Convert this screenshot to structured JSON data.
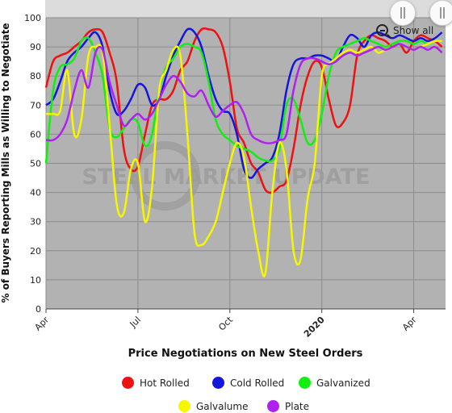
{
  "chart_data": {
    "type": "line",
    "title": "",
    "xlabel": "Price Negotiations on New Steel Orders",
    "ylabel": "% of Buyers Reporting Mills as Willing to Negotiate",
    "ylim": [
      0,
      100
    ],
    "yticks": [
      0,
      10,
      20,
      30,
      40,
      50,
      60,
      70,
      80,
      90,
      100
    ],
    "xticks": [
      {
        "label": "Apr",
        "x": 0,
        "bold": false
      },
      {
        "label": "Jul",
        "x": 13,
        "bold": false
      },
      {
        "label": "Oct",
        "x": 26,
        "bold": false
      },
      {
        "label": "2020",
        "x": 39,
        "bold": true
      },
      {
        "label": "Apr",
        "x": 52,
        "bold": false
      }
    ],
    "xlim": [
      0,
      56.5
    ],
    "grid": true,
    "legend_position": "bottom",
    "watermark": "STEEL MARKET UPDATE",
    "series": [
      {
        "name": "Hot Rolled",
        "color": "#ee1111",
        "x": [
          0,
          1,
          2,
          3,
          4,
          5,
          6,
          7,
          8,
          9,
          10,
          11,
          12,
          13,
          14,
          15,
          16,
          17,
          18,
          19,
          20,
          21,
          22,
          23,
          24,
          25,
          26,
          27,
          28,
          29,
          30,
          31,
          32,
          33,
          34,
          35,
          36,
          37,
          38,
          39,
          40,
          41,
          42,
          43,
          44,
          45,
          46,
          47,
          48,
          49,
          50,
          51,
          52,
          53,
          54,
          55,
          56
        ],
        "values": [
          76,
          85,
          87,
          88,
          90,
          92,
          95,
          96,
          95,
          88,
          78,
          55,
          48,
          49,
          60,
          70,
          72,
          72,
          75,
          82,
          85,
          92,
          96,
          96,
          95,
          90,
          78,
          62,
          57,
          50,
          47,
          41,
          40,
          42,
          44,
          55,
          70,
          80,
          85,
          83,
          72,
          63,
          64,
          70,
          87,
          92,
          94,
          93,
          92,
          90,
          91,
          88,
          92,
          94,
          93,
          92,
          90
        ]
      },
      {
        "name": "Cold Rolled",
        "color": "#1515e0",
        "x": [
          0,
          1,
          2,
          3,
          4,
          5,
          6,
          7,
          8,
          9,
          10,
          11,
          12,
          13,
          14,
          15,
          16,
          17,
          18,
          19,
          20,
          21,
          22,
          23,
          24,
          25,
          26,
          27,
          28,
          29,
          30,
          31,
          32,
          33,
          34,
          35,
          36,
          37,
          38,
          39,
          40,
          41,
          42,
          43,
          44,
          45,
          46,
          47,
          48,
          49,
          50,
          51,
          52,
          53,
          54,
          55,
          56
        ],
        "values": [
          70,
          72,
          78,
          85,
          88,
          90,
          93,
          95,
          90,
          75,
          67,
          68,
          72,
          77,
          76,
          70,
          72,
          80,
          87,
          92,
          96,
          95,
          90,
          80,
          72,
          68,
          67,
          60,
          48,
          45,
          48,
          50,
          52,
          60,
          75,
          84,
          86,
          86,
          87,
          87,
          86,
          85,
          90,
          94,
          93,
          90,
          94,
          95,
          94,
          93,
          94,
          93,
          92,
          93,
          92,
          93,
          95
        ]
      },
      {
        "name": "Galvanized",
        "color": "#11ee11",
        "x": [
          0,
          1,
          2,
          3,
          4,
          5,
          6,
          7,
          8,
          9,
          10,
          11,
          12,
          13,
          14,
          15,
          16,
          17,
          18,
          19,
          20,
          21,
          22,
          23,
          24,
          25,
          26,
          27,
          28,
          29,
          30,
          31,
          32,
          33,
          34,
          35,
          36,
          37,
          38,
          39,
          40,
          41,
          42,
          43,
          44,
          45,
          46,
          47,
          48,
          49,
          50,
          51,
          52,
          53,
          54,
          55,
          56
        ],
        "values": [
          50,
          75,
          83,
          84,
          86,
          92,
          93,
          88,
          80,
          62,
          59,
          62,
          65,
          64,
          56,
          60,
          75,
          83,
          86,
          90,
          91,
          90,
          88,
          78,
          65,
          60,
          58,
          56,
          55,
          54,
          52,
          51,
          51,
          55,
          70,
          72,
          65,
          57,
          58,
          67,
          80,
          88,
          90,
          91,
          92,
          93,
          92,
          91,
          90,
          91,
          92,
          92,
          91,
          92,
          91,
          92,
          92
        ]
      },
      {
        "name": "Galvalume",
        "color": "#f6f600",
        "x": [
          0,
          1,
          2,
          3,
          4,
          5,
          6,
          7,
          8,
          9,
          10,
          11,
          12,
          13,
          14,
          15,
          16,
          17,
          18,
          19,
          20,
          21,
          22,
          23,
          24,
          25,
          26,
          27,
          28,
          29,
          30,
          31,
          32,
          33,
          34,
          35,
          36,
          37,
          38,
          39,
          40,
          41,
          42,
          43,
          44,
          45,
          46,
          47,
          48,
          49,
          50,
          51,
          52,
          53,
          54,
          55,
          56
        ],
        "values": [
          67,
          67,
          68,
          82,
          60,
          65,
          87,
          90,
          88,
          63,
          36,
          33,
          48,
          50,
          30,
          42,
          75,
          82,
          89,
          87,
          60,
          26,
          22,
          25,
          30,
          40,
          50,
          57,
          52,
          35,
          20,
          12,
          40,
          57,
          48,
          20,
          17,
          38,
          50,
          80,
          84,
          86,
          88,
          89,
          88,
          89,
          90,
          88,
          89,
          90,
          91,
          90,
          89,
          90,
          91,
          92,
          92
        ]
      },
      {
        "name": "Plate",
        "color": "#b020f0",
        "x": [
          0,
          1,
          2,
          3,
          4,
          5,
          6,
          7,
          8,
          9,
          10,
          11,
          12,
          13,
          14,
          15,
          16,
          17,
          18,
          19,
          20,
          21,
          22,
          23,
          24,
          25,
          26,
          27,
          28,
          29,
          30,
          31,
          32,
          33,
          34,
          35,
          36,
          37,
          38,
          39,
          40,
          41,
          42,
          43,
          44,
          45,
          46,
          47,
          48,
          49,
          50,
          51,
          52,
          53,
          54,
          55,
          56
        ],
        "values": [
          58,
          58,
          60,
          65,
          75,
          82,
          76,
          88,
          89,
          78,
          70,
          63,
          65,
          67,
          65,
          67,
          72,
          77,
          80,
          78,
          74,
          73,
          75,
          70,
          66,
          68,
          70,
          71,
          67,
          60,
          58,
          57,
          57,
          58,
          60,
          75,
          84,
          86,
          86,
          85,
          84,
          85,
          87,
          88,
          87,
          88,
          89,
          90,
          89,
          90,
          91,
          90,
          89,
          90,
          89,
          90,
          88
        ]
      }
    ]
  },
  "navigator": {
    "show_all_label": "Show all"
  },
  "legend": {
    "items": [
      {
        "label": "Hot Rolled",
        "color": "#ee1111"
      },
      {
        "label": "Cold Rolled",
        "color": "#1515e0"
      },
      {
        "label": "Galvanized",
        "color": "#11ee11"
      },
      {
        "label": "Galvalume",
        "color": "#f6f600"
      },
      {
        "label": "Plate",
        "color": "#b020f0"
      }
    ]
  }
}
